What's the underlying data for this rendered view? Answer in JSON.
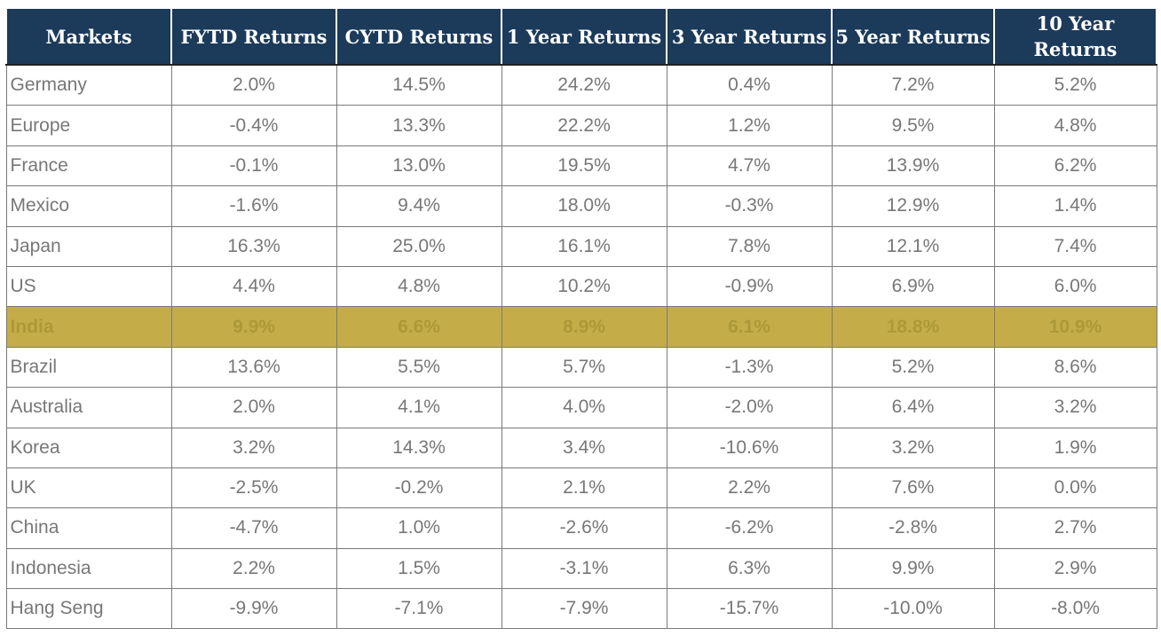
{
  "chart_data": {
    "type": "table",
    "columns": [
      "Markets",
      "FYTD Returns",
      "CYTD Returns",
      "1 Year Returns",
      "3 Year Returns",
      "5 Year Returns",
      "10 Year Returns"
    ],
    "rows": [
      [
        "Germany",
        "2.0%",
        "14.5%",
        "24.2%",
        "0.4%",
        "7.2%",
        "5.2%"
      ],
      [
        "Europe",
        "-0.4%",
        "13.3%",
        "22.2%",
        "1.2%",
        "9.5%",
        "4.8%"
      ],
      [
        "France",
        "-0.1%",
        "13.0%",
        "19.5%",
        "4.7%",
        "13.9%",
        "6.2%"
      ],
      [
        "Mexico",
        "-1.6%",
        "9.4%",
        "18.0%",
        "-0.3%",
        "12.9%",
        "1.4%"
      ],
      [
        "Japan",
        "16.3%",
        "25.0%",
        "16.1%",
        "7.8%",
        "12.1%",
        "7.4%"
      ],
      [
        "US",
        "4.4%",
        "4.8%",
        "10.2%",
        "-0.9%",
        "6.9%",
        "6.0%"
      ],
      [
        "India",
        "9.9%",
        "6.6%",
        "8.9%",
        "6.1%",
        "18.8%",
        "10.9%"
      ],
      [
        "Brazil",
        "13.6%",
        "5.5%",
        "5.7%",
        "-1.3%",
        "5.2%",
        "8.6%"
      ],
      [
        "Australia",
        "2.0%",
        "4.1%",
        "4.0%",
        "-2.0%",
        "6.4%",
        "3.2%"
      ],
      [
        "Korea",
        "3.2%",
        "14.3%",
        "3.4%",
        "-10.6%",
        "3.2%",
        "1.9%"
      ],
      [
        "UK",
        "-2.5%",
        "-0.2%",
        "2.1%",
        "2.2%",
        "7.6%",
        "0.0%"
      ],
      [
        "China",
        "-4.7%",
        "1.0%",
        "-2.6%",
        "-6.2%",
        "-2.8%",
        "2.7%"
      ],
      [
        "Indonesia",
        "2.2%",
        "1.5%",
        "-3.1%",
        "6.3%",
        "9.9%",
        "2.9%"
      ],
      [
        "Hang Seng",
        "-9.9%",
        "-7.1%",
        "-7.9%",
        "-15.7%",
        "-10.0%",
        "-8.0%"
      ]
    ],
    "highlighted_row": "India",
    "colors": {
      "header_bg": "#1c3a5a",
      "header_text": "#ffffff",
      "cell_text": "#777777",
      "highlight_bg": "#c4ad48",
      "highlight_text": "#ad9838",
      "border": "#7a7a7a"
    }
  }
}
